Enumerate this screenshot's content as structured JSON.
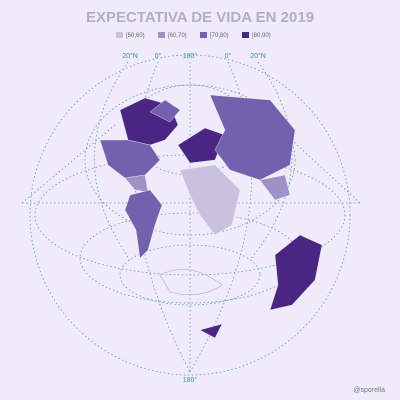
{
  "title": "EXPECTATIVA DE VIDA EN 2019",
  "legend": [
    {
      "label": "[50,60)",
      "color": "#c8c2de"
    },
    {
      "label": "[60,70)",
      "color": "#9c92c6"
    },
    {
      "label": "[70,80)",
      "color": "#7262ad"
    },
    {
      "label": "[80,90)",
      "color": "#4a2682"
    }
  ],
  "graticule_labels": [
    "20°N",
    "0°",
    "180°",
    "0°",
    "20°N",
    "180°"
  ],
  "credit": "@sporella"
}
